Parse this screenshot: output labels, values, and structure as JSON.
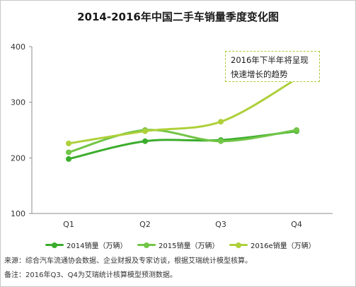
{
  "title": "2014-2016年中国二手车销量季度变化图",
  "chart_data": {
    "type": "line",
    "categories": [
      "Q1",
      "Q2",
      "Q3",
      "Q4"
    ],
    "ylim": [
      100,
      400
    ],
    "yticks": [
      100,
      200,
      300,
      400
    ],
    "grid": false,
    "legend_position": "bottom",
    "series": [
      {
        "name": "2014销量（万辆）",
        "values": [
          198,
          230,
          232,
          248
        ],
        "color": "#3bad2c"
      },
      {
        "name": "2015销量（万辆）",
        "values": [
          210,
          250,
          230,
          250
        ],
        "color": "#72c547"
      },
      {
        "name": "2016e销量（万辆）",
        "values": [
          226,
          248,
          265,
          342
        ],
        "color": "#aed03a"
      }
    ],
    "annotation": "2016年下半年将呈现快速增长的趋势"
  },
  "callout": {
    "line1": "2016年下半年将呈现",
    "line2": "快速增长的趋势"
  },
  "source_note": "来源：综合汽车流通协会数据、企业财报及专家访谈，根据艾瑞统计模型核算。",
  "remark_note": "备注：2016年Q3、Q4为艾瑞统计核算模型预测数据。"
}
